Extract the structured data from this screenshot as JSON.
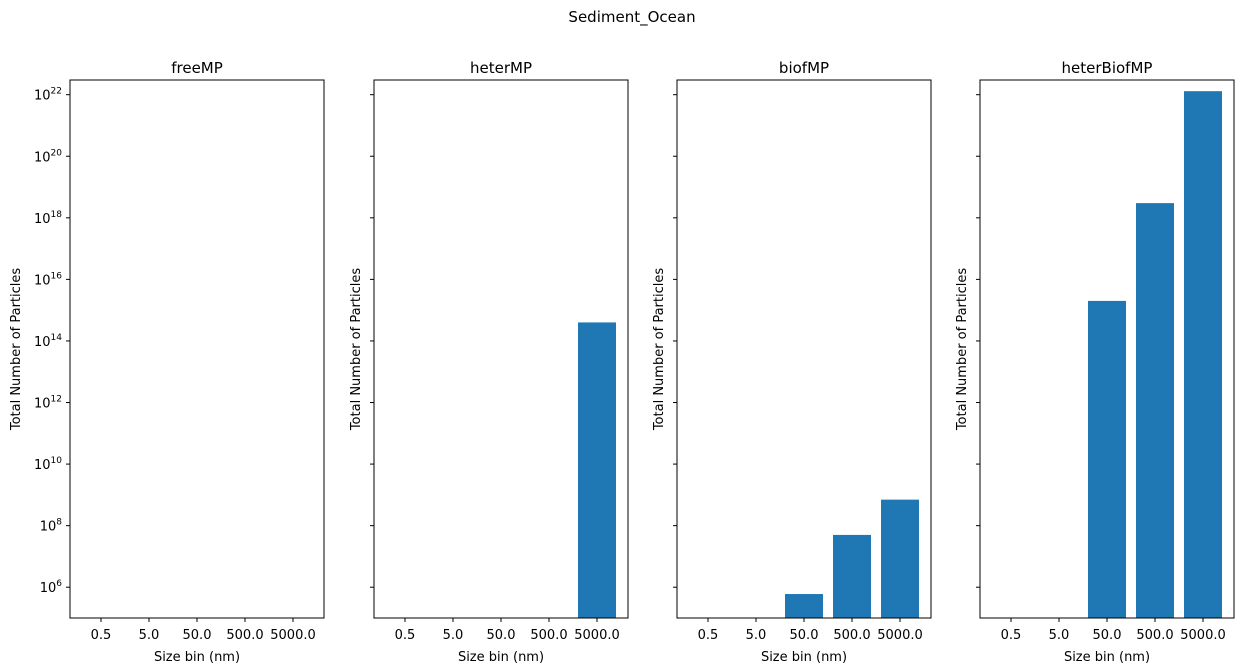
{
  "figure": {
    "suptitle": "Sediment_Ocean",
    "xlabel": "Size bin (nm)",
    "ylabel": "Total Number of Particles"
  },
  "chart_data": [
    {
      "type": "bar",
      "title": "freeMP",
      "categories": [
        "0.5",
        "5.0",
        "50.0",
        "500.0",
        "5000.0"
      ],
      "values": [
        0,
        0,
        0,
        0,
        0
      ],
      "xlabel": "Size bin (nm)",
      "ylabel": "Total Number of Particles",
      "yscale": "log",
      "ylim": [
        100000.0,
        3e+22
      ],
      "color": "#1f77b4"
    },
    {
      "type": "bar",
      "title": "heterMP",
      "categories": [
        "0.5",
        "5.0",
        "50.0",
        "500.0",
        "5000.0"
      ],
      "values": [
        0,
        0,
        0,
        0,
        400000000000000.0
      ],
      "xlabel": "Size bin (nm)",
      "ylabel": "Total Number of Particles",
      "yscale": "log",
      "ylim": [
        100000.0,
        3e+22
      ],
      "color": "#1f77b4"
    },
    {
      "type": "bar",
      "title": "biofMP",
      "categories": [
        "0.5",
        "5.0",
        "50.0",
        "500.0",
        "5000.0"
      ],
      "values": [
        0,
        0,
        600000.0,
        50000000.0,
        700000000.0
      ],
      "xlabel": "Size bin (nm)",
      "ylabel": "Total Number of Particles",
      "yscale": "log",
      "ylim": [
        100000.0,
        3e+22
      ],
      "color": "#1f77b4"
    },
    {
      "type": "bar",
      "title": "heterBiofMP",
      "categories": [
        "0.5",
        "5.0",
        "50.0",
        "500.0",
        "5000.0"
      ],
      "values": [
        0,
        0,
        2000000000000000.0,
        3e+18,
        1.3e+22
      ],
      "xlabel": "Size bin (nm)",
      "ylabel": "Total Number of Particles",
      "yscale": "log",
      "ylim": [
        100000.0,
        3e+22
      ],
      "color": "#1f77b4"
    }
  ],
  "yticks": [
    {
      "base": "10",
      "exp": "6",
      "value": 1000000.0
    },
    {
      "base": "10",
      "exp": "8",
      "value": 100000000.0
    },
    {
      "base": "10",
      "exp": "10",
      "value": 10000000000.0
    },
    {
      "base": "10",
      "exp": "12",
      "value": 1000000000000.0
    },
    {
      "base": "10",
      "exp": "14",
      "value": 100000000000000.0
    },
    {
      "base": "10",
      "exp": "16",
      "value": 1e+16
    },
    {
      "base": "10",
      "exp": "18",
      "value": 1e+18
    },
    {
      "base": "10",
      "exp": "20",
      "value": 1e+20
    },
    {
      "base": "10",
      "exp": "22",
      "value": 1e+22
    }
  ]
}
